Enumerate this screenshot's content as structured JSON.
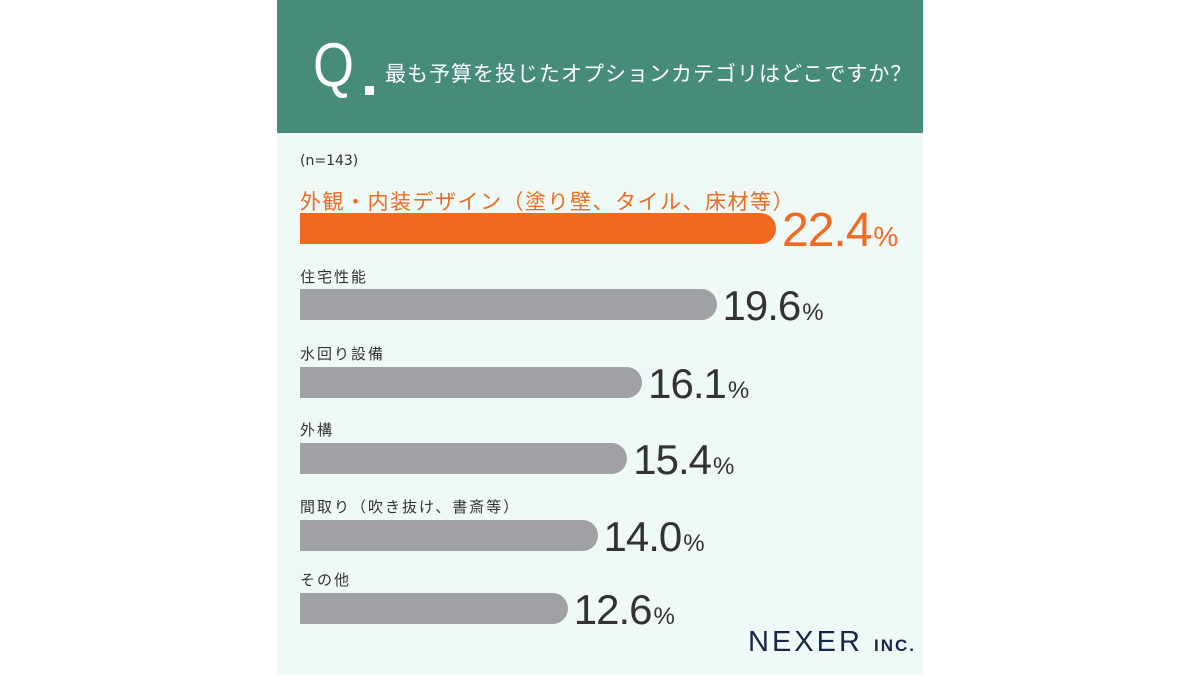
{
  "header": {
    "q": "Q",
    "question": "最も予算を投じたオプションカテゴリはどこですか？"
  },
  "chart_data": {
    "type": "bar",
    "orientation": "horizontal",
    "title": "最も予算を投じたオプションカテゴリはどこですか？",
    "note": "(n=143)",
    "categories": [
      "外観・内装デザイン（塗り壁、タイル、床材等）",
      "住宅性能",
      "水回り設備",
      "外構",
      "間取り（吹き抜け、書斎等）",
      "その他"
    ],
    "values": [
      22.4,
      19.6,
      16.1,
      15.4,
      14.0,
      12.6
    ],
    "value_labels": [
      "22.4",
      "19.6",
      "16.1",
      "15.4",
      "14.0",
      "12.6"
    ],
    "unit": "%",
    "highlight_index": 0,
    "colors": {
      "highlight": "#f06a22",
      "default": "#a0a1a5",
      "header": "#468c79"
    }
  },
  "logo": {
    "name": "NEXER",
    "suffix": "INC."
  }
}
